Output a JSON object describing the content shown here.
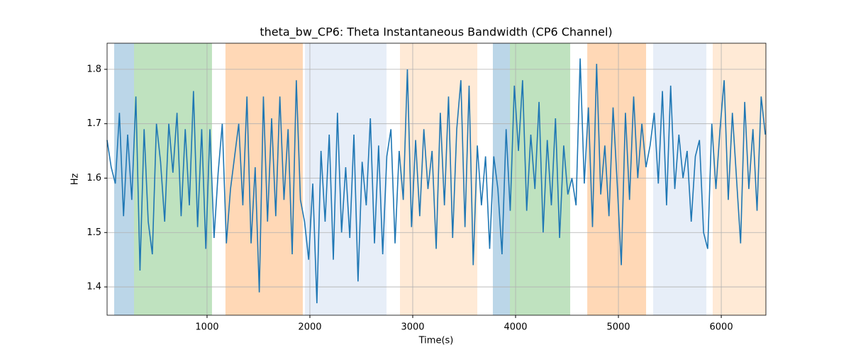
{
  "chart_data": {
    "type": "line",
    "title": "theta_bw_CP6: Theta Instantaneous Bandwidth (CP6 Channel)",
    "xlabel": "Time(s)",
    "ylabel": "Hz",
    "xlim": [
      28,
      6434
    ],
    "ylim": [
      1.348,
      1.848
    ],
    "xticks": [
      1000,
      2000,
      3000,
      4000,
      5000,
      6000
    ],
    "yticks": [
      1.4,
      1.5,
      1.6,
      1.7,
      1.8
    ],
    "grid": true,
    "spans": [
      {
        "start": 97,
        "end": 290,
        "color": "#1f77b4",
        "opacity": 0.3
      },
      {
        "start": 290,
        "end": 1048,
        "color": "#2ca02c",
        "opacity": 0.3
      },
      {
        "start": 1179,
        "end": 1931,
        "color": "#ff7f0e",
        "opacity": 0.3
      },
      {
        "start": 1952,
        "end": 2745,
        "color": "#aec7e8",
        "opacity": 0.3
      },
      {
        "start": 2876,
        "end": 3628,
        "color": "#ffbb78",
        "opacity": 0.3
      },
      {
        "start": 3779,
        "end": 3945,
        "color": "#1f77b4",
        "opacity": 0.3
      },
      {
        "start": 3945,
        "end": 4531,
        "color": "#2ca02c",
        "opacity": 0.3
      },
      {
        "start": 4697,
        "end": 5269,
        "color": "#ff7f0e",
        "opacity": 0.3
      },
      {
        "start": 5338,
        "end": 5855,
        "color": "#aec7e8",
        "opacity": 0.3
      },
      {
        "start": 5917,
        "end": 6434,
        "color": "#ffbb78",
        "opacity": 0.3
      }
    ],
    "series": [
      {
        "color": "#1f77b4",
        "x": [
          28,
          68,
          108,
          148,
          188,
          228,
          268,
          308,
          348,
          388,
          428,
          468,
          508,
          548,
          588,
          628,
          668,
          708,
          748,
          788,
          828,
          868,
          908,
          948,
          988,
          1028,
          1068,
          1108,
          1148,
          1188,
          1228,
          1268,
          1308,
          1348,
          1388,
          1428,
          1468,
          1508,
          1548,
          1588,
          1628,
          1668,
          1708,
          1748,
          1788,
          1828,
          1868,
          1908,
          1948,
          1988,
          2028,
          2068,
          2108,
          2148,
          2188,
          2228,
          2268,
          2308,
          2348,
          2388,
          2428,
          2468,
          2508,
          2548,
          2588,
          2628,
          2668,
          2708,
          2748,
          2788,
          2828,
          2868,
          2908,
          2948,
          2988,
          3028,
          3068,
          3108,
          3148,
          3188,
          3228,
          3268,
          3308,
          3348,
          3388,
          3428,
          3468,
          3508,
          3548,
          3588,
          3628,
          3668,
          3708,
          3748,
          3788,
          3828,
          3868,
          3908,
          3948,
          3988,
          4028,
          4068,
          4108,
          4148,
          4188,
          4228,
          4268,
          4308,
          4348,
          4388,
          4428,
          4468,
          4508,
          4548,
          4588,
          4628,
          4668,
          4708,
          4748,
          4788,
          4828,
          4868,
          4908,
          4948,
          4988,
          5028,
          5068,
          5108,
          5148,
          5188,
          5228,
          5268,
          5308,
          5348,
          5388,
          5428,
          5468,
          5508,
          5548,
          5588,
          5628,
          5668,
          5708,
          5748,
          5788,
          5828,
          5868,
          5908,
          5948,
          5988,
          6028,
          6068,
          6108,
          6148,
          6188,
          6228,
          6268,
          6308,
          6348,
          6388,
          6428
        ],
        "values": [
          1.67,
          1.62,
          1.59,
          1.72,
          1.53,
          1.68,
          1.56,
          1.75,
          1.43,
          1.69,
          1.52,
          1.46,
          1.7,
          1.63,
          1.52,
          1.7,
          1.61,
          1.72,
          1.53,
          1.69,
          1.55,
          1.76,
          1.51,
          1.69,
          1.47,
          1.69,
          1.49,
          1.61,
          1.7,
          1.48,
          1.58,
          1.64,
          1.7,
          1.55,
          1.75,
          1.48,
          1.62,
          1.39,
          1.75,
          1.52,
          1.71,
          1.53,
          1.75,
          1.56,
          1.69,
          1.46,
          1.78,
          1.56,
          1.52,
          1.45,
          1.59,
          1.37,
          1.65,
          1.52,
          1.68,
          1.45,
          1.72,
          1.5,
          1.62,
          1.49,
          1.68,
          1.41,
          1.63,
          1.55,
          1.71,
          1.48,
          1.66,
          1.46,
          1.64,
          1.69,
          1.48,
          1.65,
          1.56,
          1.8,
          1.51,
          1.67,
          1.53,
          1.69,
          1.58,
          1.65,
          1.47,
          1.72,
          1.55,
          1.75,
          1.49,
          1.69,
          1.78,
          1.51,
          1.77,
          1.44,
          1.66,
          1.55,
          1.64,
          1.47,
          1.64,
          1.58,
          1.46,
          1.69,
          1.54,
          1.77,
          1.65,
          1.78,
          1.54,
          1.68,
          1.58,
          1.74,
          1.5,
          1.67,
          1.55,
          1.71,
          1.49,
          1.66,
          1.57,
          1.6,
          1.55,
          1.82,
          1.59,
          1.73,
          1.51,
          1.81,
          1.57,
          1.66,
          1.53,
          1.73,
          1.59,
          1.44,
          1.72,
          1.56,
          1.75,
          1.6,
          1.7,
          1.62,
          1.66,
          1.72,
          1.59,
          1.76,
          1.55,
          1.77,
          1.58,
          1.68,
          1.6,
          1.65,
          1.52,
          1.64,
          1.67,
          1.5,
          1.47,
          1.7,
          1.58,
          1.69,
          1.78,
          1.56,
          1.72,
          1.6,
          1.48,
          1.74,
          1.58,
          1.69,
          1.54,
          1.75,
          1.68
        ]
      }
    ]
  }
}
